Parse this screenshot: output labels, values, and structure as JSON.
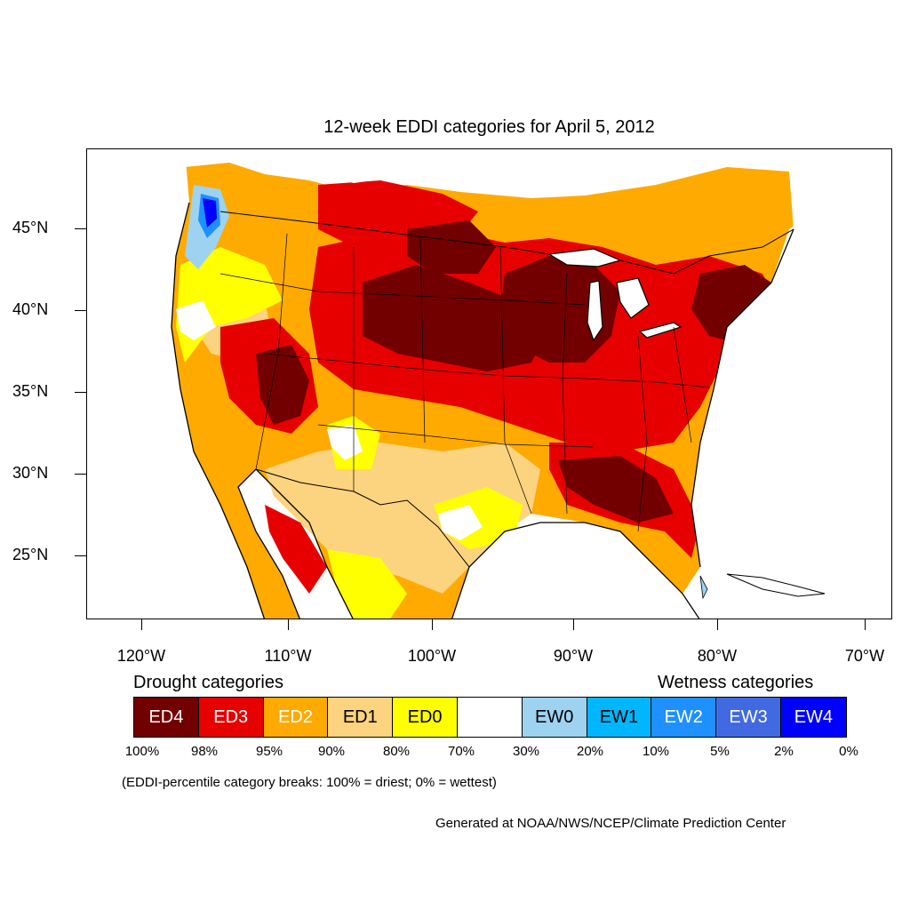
{
  "title": "12-week EDDI categories for April 5, 2012",
  "y_axis": {
    "ticks": [
      "45°N",
      "40°N",
      "35°N",
      "30°N",
      "25°N"
    ]
  },
  "x_axis": {
    "ticks": [
      "120°W",
      "110°W",
      "100°W",
      "90°W",
      "80°W",
      "70°W"
    ]
  },
  "legend": {
    "drought_heading": "Drought categories",
    "wetness_heading": "Wetness categories",
    "categories": [
      {
        "label": "ED4",
        "color": "#720000",
        "text_color": "#ffffff"
      },
      {
        "label": "ED3",
        "color": "#e60000",
        "text_color": "#ffffff"
      },
      {
        "label": "ED2",
        "color": "#ffaa00",
        "text_color": "#ffffff"
      },
      {
        "label": "ED1",
        "color": "#fcd37f",
        "text_color": "#000000"
      },
      {
        "label": "ED0",
        "color": "#ffff00",
        "text_color": "#000000"
      },
      {
        "label": "",
        "color": "#ffffff",
        "text_color": "#000000"
      },
      {
        "label": "EW0",
        "color": "#9dd3f0",
        "text_color": "#000000"
      },
      {
        "label": "EW1",
        "color": "#00b7ff",
        "text_color": "#000000"
      },
      {
        "label": "EW2",
        "color": "#1e90ff",
        "text_color": "#ffffff"
      },
      {
        "label": "EW3",
        "color": "#4169e1",
        "text_color": "#ffffff"
      },
      {
        "label": "EW4",
        "color": "#0000ff",
        "text_color": "#ffffff"
      }
    ],
    "percentiles": [
      "100%",
      "98%",
      "95%",
      "90%",
      "80%",
      "70%",
      "30%",
      "20%",
      "10%",
      "5%",
      "2%",
      "0%"
    ]
  },
  "note": "(EDDI-percentile category breaks: 100% = driest; 0% = wettest)",
  "credit": "Generated at NOAA/NWS/NCEP/Climate Prediction Center"
}
